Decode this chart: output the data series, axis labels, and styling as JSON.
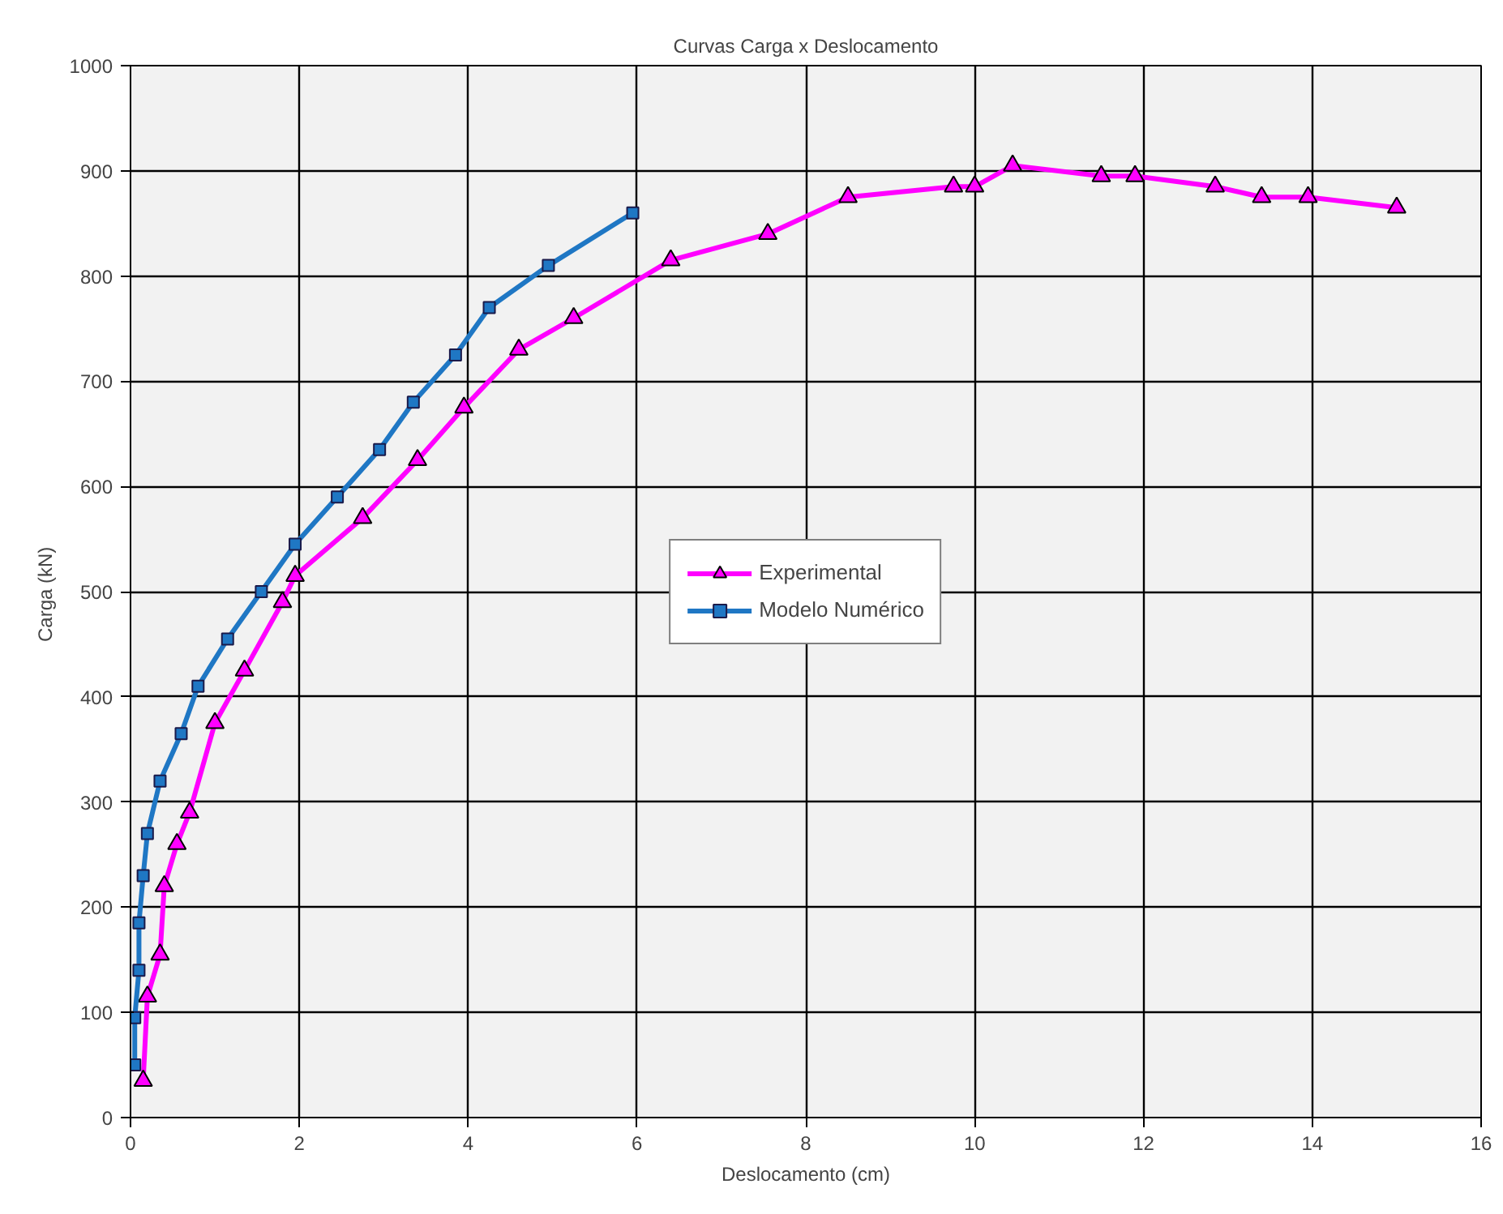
{
  "chart_data": {
    "type": "line",
    "title": "Curvas Carga x Deslocamento",
    "xlabel": "Deslocamento (cm)",
    "ylabel": "Carga  (kN)",
    "xlim": [
      0,
      16
    ],
    "xticks": [
      0,
      2,
      4,
      6,
      8,
      10,
      12,
      14,
      16
    ],
    "ylim": [
      0,
      1000
    ],
    "yticks": [
      0,
      100,
      200,
      300,
      400,
      500,
      600,
      700,
      800,
      900,
      1000
    ],
    "grid": true,
    "legend": "center",
    "series": [
      {
        "name": "Experimental",
        "color": "#ff00ff",
        "marker": "triangle",
        "x": [
          0.15,
          0.2,
          0.35,
          0.4,
          0.55,
          0.7,
          1.0,
          1.35,
          1.8,
          1.95,
          2.75,
          3.4,
          3.95,
          4.6,
          5.25,
          6.4,
          7.55,
          8.5,
          9.75,
          10.0,
          10.45,
          11.5,
          11.9,
          12.85,
          13.4,
          13.95,
          15.0
        ],
        "values": [
          35,
          115,
          155,
          220,
          260,
          290,
          375,
          425,
          490,
          515,
          570,
          625,
          675,
          730,
          760,
          815,
          840,
          875,
          885,
          885,
          905,
          895,
          895,
          885,
          875,
          875,
          865
        ]
      },
      {
        "name": "Modelo Numérico",
        "color": "#1f77c4",
        "marker": "square",
        "x": [
          0.05,
          0.05,
          0.1,
          0.1,
          0.15,
          0.2,
          0.35,
          0.6,
          0.8,
          1.15,
          1.55,
          1.95,
          2.45,
          2.95,
          3.35,
          3.85,
          4.25,
          4.95,
          5.95
        ],
        "values": [
          50,
          95,
          140,
          185,
          230,
          270,
          320,
          365,
          410,
          455,
          500,
          545,
          590,
          635,
          680,
          725,
          770,
          810,
          860
        ]
      }
    ]
  }
}
